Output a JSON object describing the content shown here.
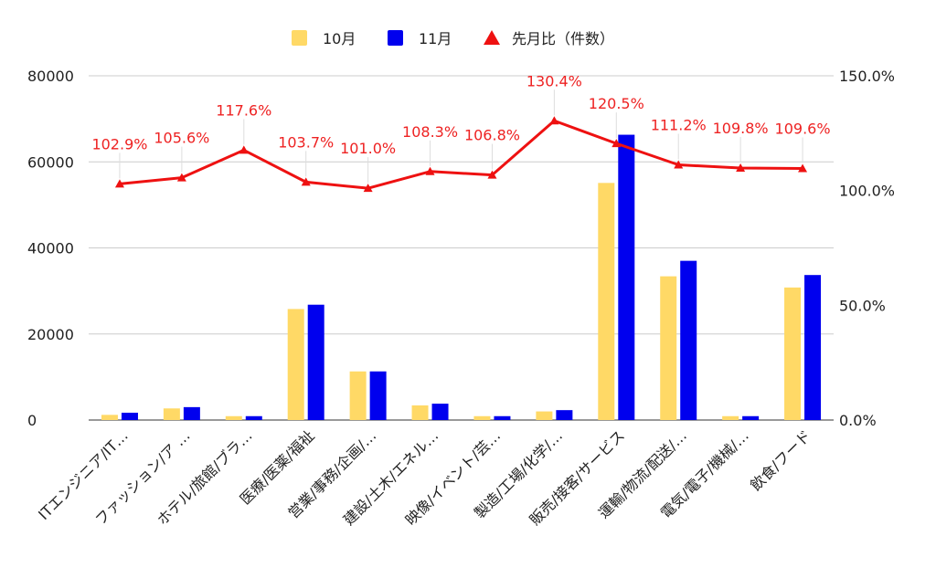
{
  "chart_data": {
    "type": "bar",
    "categories": [
      "ITエンジニア/IT…",
      "ファッション/ア …",
      "ホテル/旅館/ブラ…",
      "医療/医薬/福祉",
      "営業/事務/企画/…",
      "建設/土木/エネル…",
      "映像/イベント/芸…",
      "製造/工場/化学/…",
      "販売/接客/サービス",
      "運輸/物流/配送/…",
      "電気/電子/機械/…",
      "飲食/フード"
    ],
    "series": [
      {
        "name": "10月",
        "type": "bar",
        "axis": "left",
        "color": "#ffd966",
        "values": [
          1200,
          2700,
          900,
          25800,
          11300,
          3400,
          900,
          2000,
          55100,
          33400,
          900,
          30800
        ]
      },
      {
        "name": "11月",
        "type": "bar",
        "axis": "left",
        "color": "#0000ee",
        "values": [
          1700,
          3000,
          900,
          26800,
          11300,
          3800,
          900,
          2300,
          66300,
          37000,
          900,
          33700
        ]
      },
      {
        "name": "先月比（件数）",
        "type": "line",
        "axis": "right",
        "color": "#ee1111",
        "values": [
          102.9,
          105.6,
          117.6,
          103.7,
          101.0,
          108.3,
          106.8,
          130.4,
          120.5,
          111.2,
          109.8,
          109.6
        ],
        "labels": [
          "102.9%",
          "105.6%",
          "117.6%",
          "103.7%",
          "101.0%",
          "108.3%",
          "106.8%",
          "130.4%",
          "120.5%",
          "111.2%",
          "109.8%",
          "109.6%"
        ]
      }
    ],
    "y_left": {
      "min": 0,
      "max": 80000,
      "ticks": [
        0,
        20000,
        40000,
        60000,
        80000
      ],
      "tick_labels": [
        "0",
        "20000",
        "40000",
        "60000",
        "80000"
      ]
    },
    "y_right": {
      "min": 0,
      "max": 150,
      "ticks": [
        0,
        50,
        100,
        150
      ],
      "tick_labels": [
        "0.0%",
        "50.0%",
        "100.0%",
        "150.0%"
      ]
    },
    "grid": true,
    "legend_position": "top-center"
  }
}
